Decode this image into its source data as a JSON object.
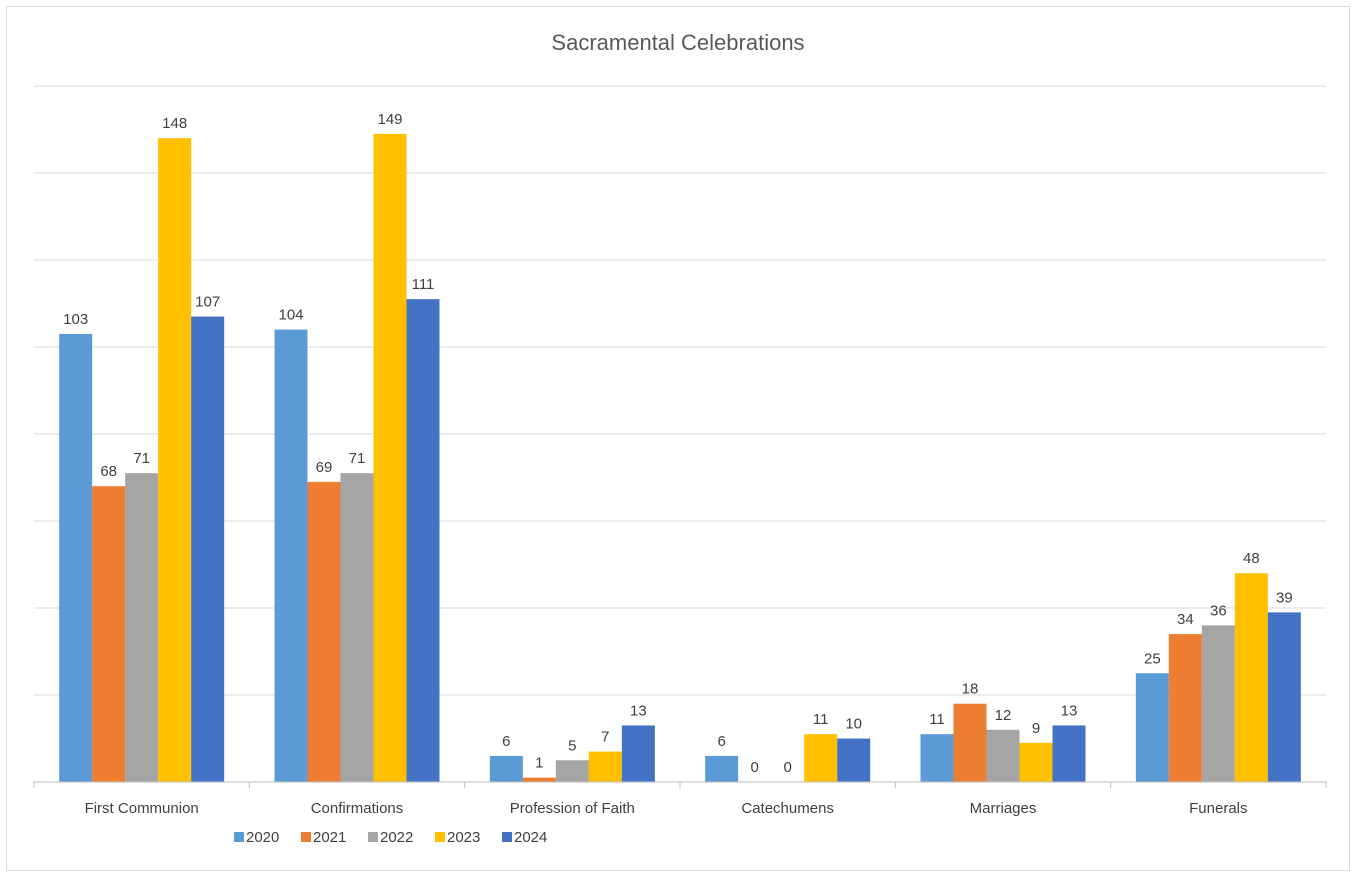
{
  "chart_data": {
    "type": "bar",
    "title": "Sacramental Celebrations",
    "categories": [
      "First Communion",
      "Confirmations",
      "Profession of Faith",
      "Catechumens",
      "Marriages",
      "Funerals"
    ],
    "series": [
      {
        "name": "2020",
        "color": "#5b9bd5",
        "values": [
          103,
          104,
          6,
          6,
          11,
          25
        ]
      },
      {
        "name": "2021",
        "color": "#ed7d31",
        "values": [
          68,
          69,
          1,
          0,
          18,
          34
        ]
      },
      {
        "name": "2022",
        "color": "#a5a5a5",
        "values": [
          71,
          71,
          5,
          0,
          12,
          36
        ]
      },
      {
        "name": "2023",
        "color": "#ffc000",
        "values": [
          148,
          149,
          7,
          11,
          9,
          48
        ]
      },
      {
        "name": "2024",
        "color": "#4472c4",
        "values": [
          107,
          111,
          13,
          10,
          13,
          39
        ]
      }
    ],
    "ylim": [
      0,
      160
    ],
    "ygridstep": 20,
    "grid": true,
    "data_labels": true,
    "legend_position": "bottom-left"
  }
}
